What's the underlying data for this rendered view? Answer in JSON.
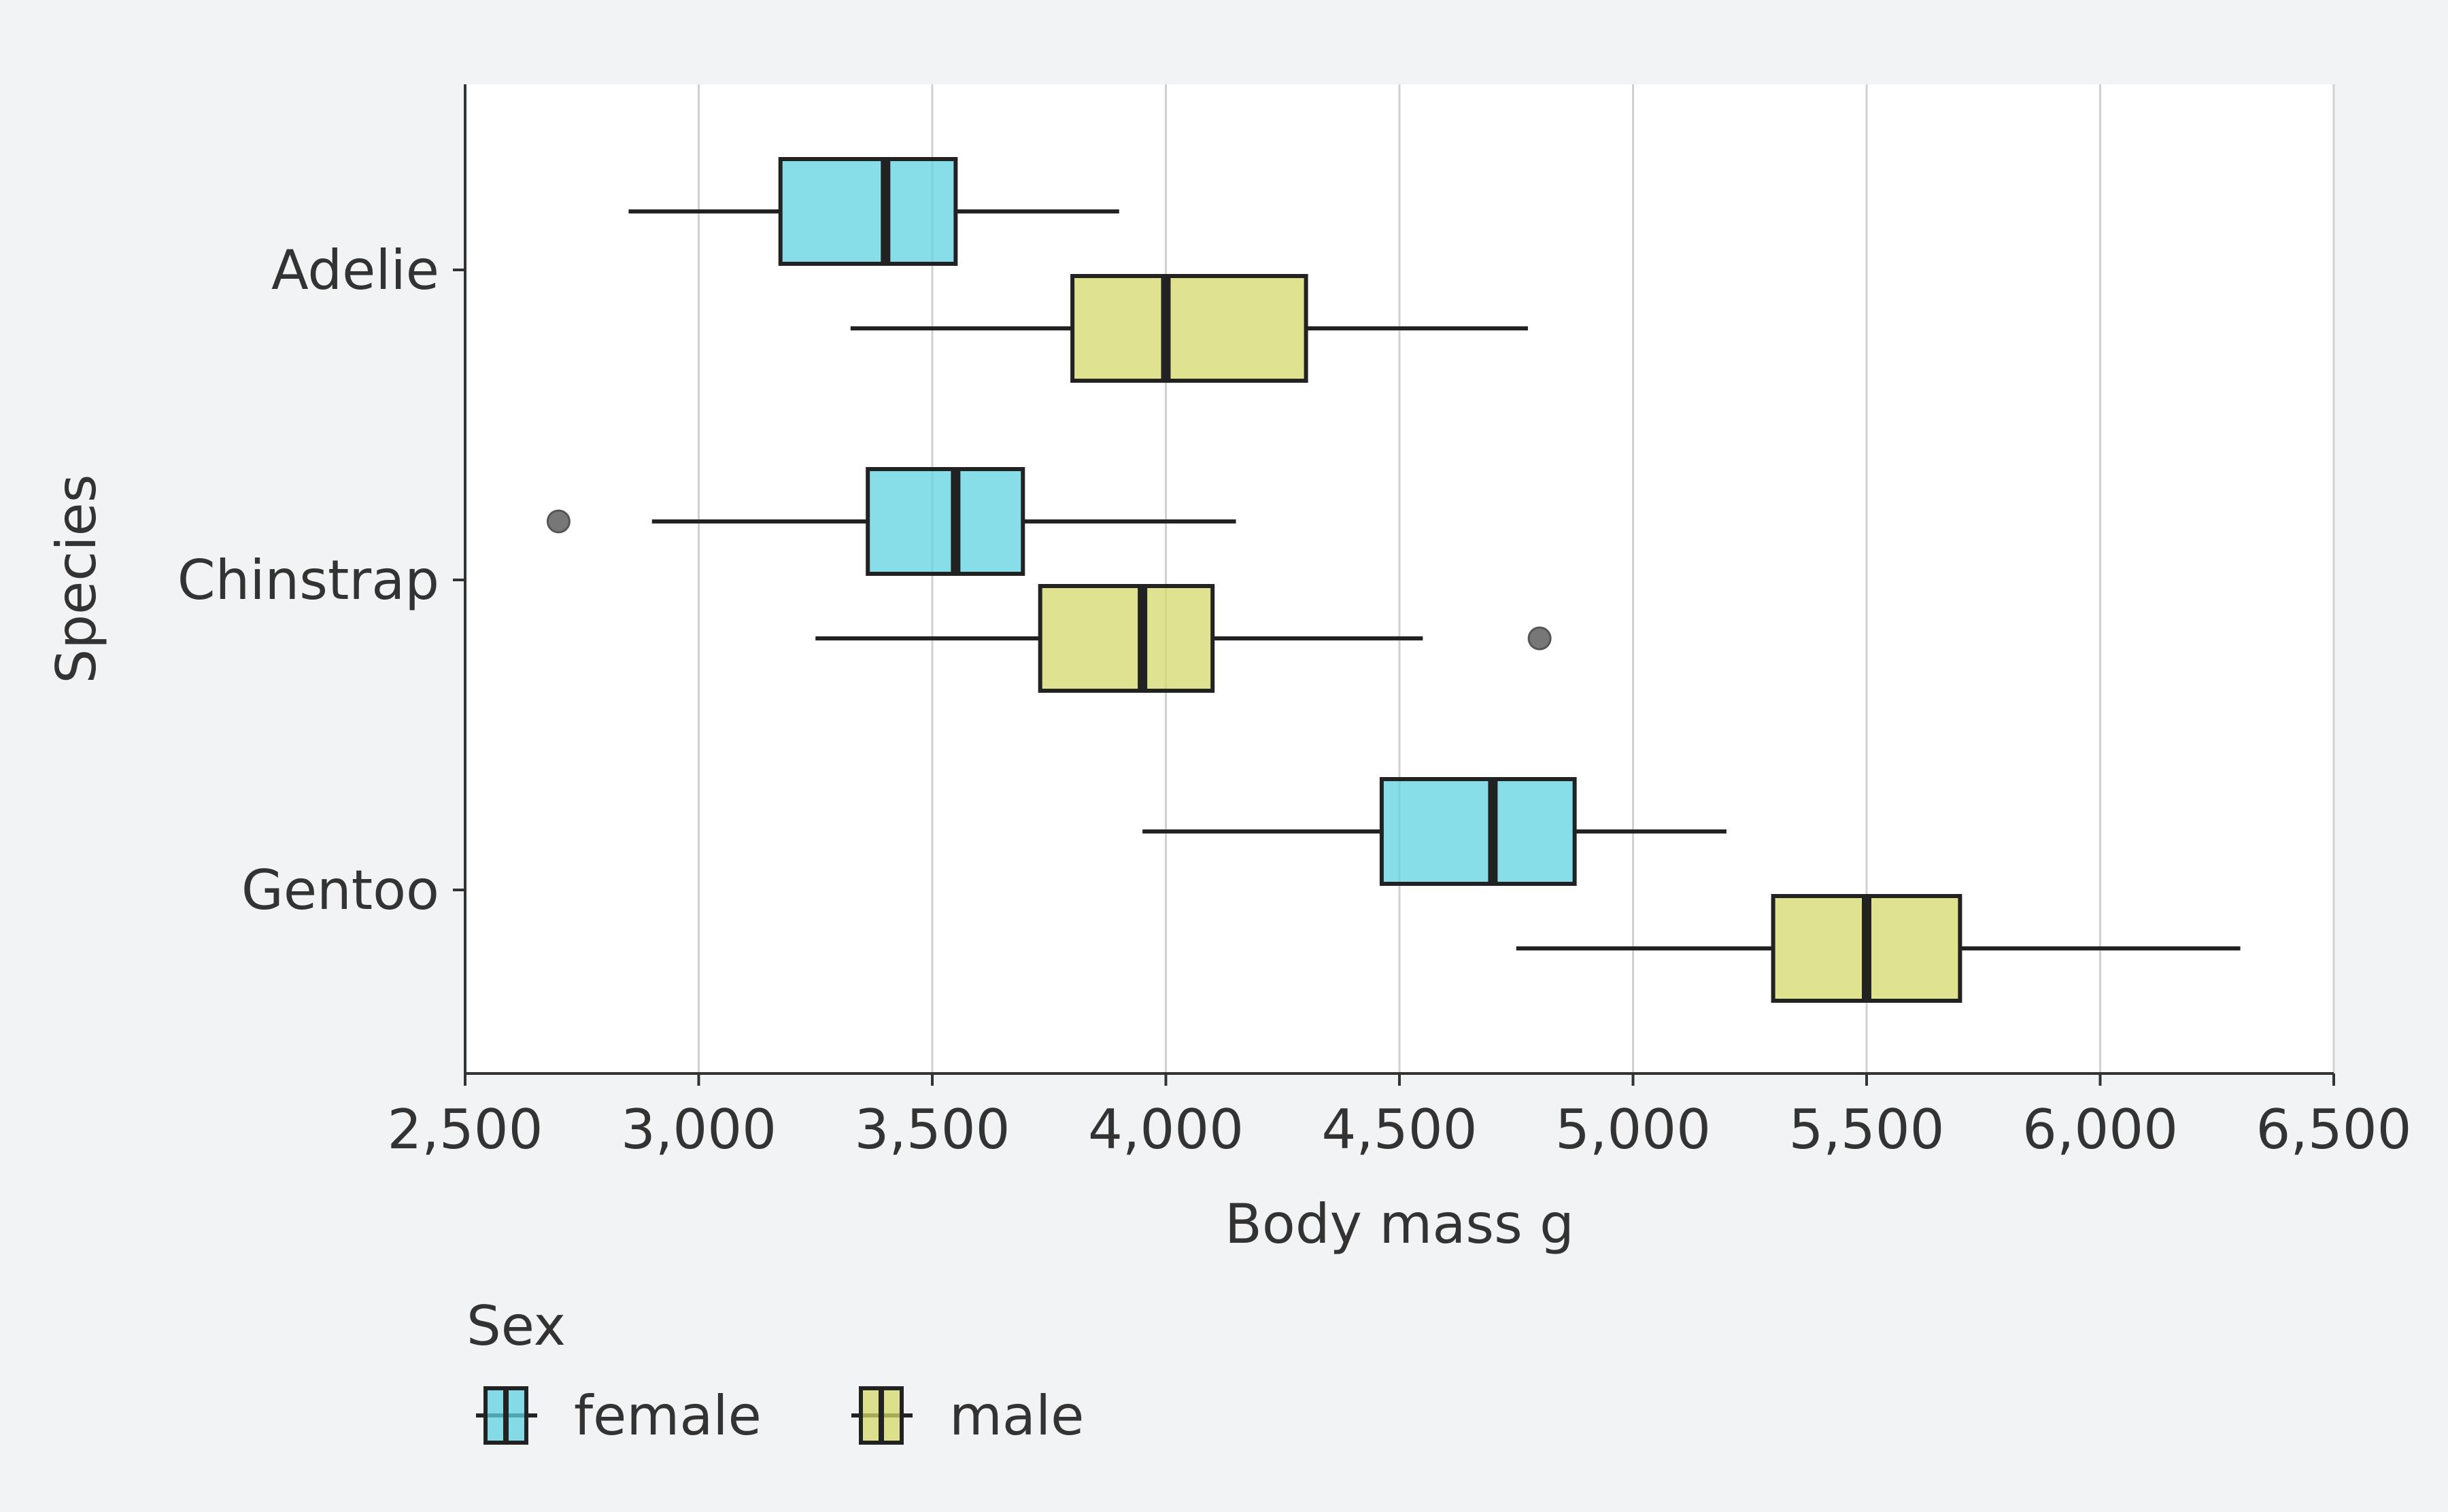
{
  "chart_data": {
    "type": "boxplot",
    "orientation": "horizontal",
    "xlabel": "Body mass g",
    "ylabel": "Species",
    "xlim": [
      2500,
      6500
    ],
    "xticks": [
      2500,
      3000,
      3500,
      4000,
      4500,
      5000,
      5500,
      6000,
      6500
    ],
    "xtick_labels": [
      "2,500",
      "3,000",
      "3,500",
      "4,000",
      "4,500",
      "5,000",
      "5,500",
      "6,000",
      "6,500"
    ],
    "categories": [
      "Adelie",
      "Chinstrap",
      "Gentoo"
    ],
    "grid": "vertical",
    "legend": {
      "title": "Sex",
      "placement": "bottom-left",
      "entries": [
        "female",
        "male"
      ]
    },
    "series": [
      {
        "name": "female",
        "color": "#5fd3e2",
        "boxes": [
          {
            "category": "Adelie",
            "whisker_low": 2850,
            "q1": 3175,
            "median": 3400,
            "q3": 3550,
            "whisker_high": 3900,
            "outliers": []
          },
          {
            "category": "Chinstrap",
            "whisker_low": 2900,
            "q1": 3362,
            "median": 3550,
            "q3": 3694,
            "whisker_high": 4150,
            "outliers": [
              2700
            ]
          },
          {
            "category": "Gentoo",
            "whisker_low": 3950,
            "q1": 4462,
            "median": 4700,
            "q3": 4875,
            "whisker_high": 5200,
            "outliers": []
          }
        ]
      },
      {
        "name": "male",
        "color": "#d4d96a",
        "boxes": [
          {
            "category": "Adelie",
            "whisker_low": 3325,
            "q1": 3800,
            "median": 4000,
            "q3": 4300,
            "whisker_high": 4775,
            "outliers": []
          },
          {
            "category": "Chinstrap",
            "whisker_low": 3250,
            "q1": 3731,
            "median": 3950,
            "q3": 4100,
            "whisker_high": 4550,
            "outliers": [
              4800
            ]
          },
          {
            "category": "Gentoo",
            "whisker_low": 4750,
            "q1": 5300,
            "median": 5500,
            "q3": 5700,
            "whisker_high": 6300,
            "outliers": []
          }
        ]
      }
    ]
  }
}
